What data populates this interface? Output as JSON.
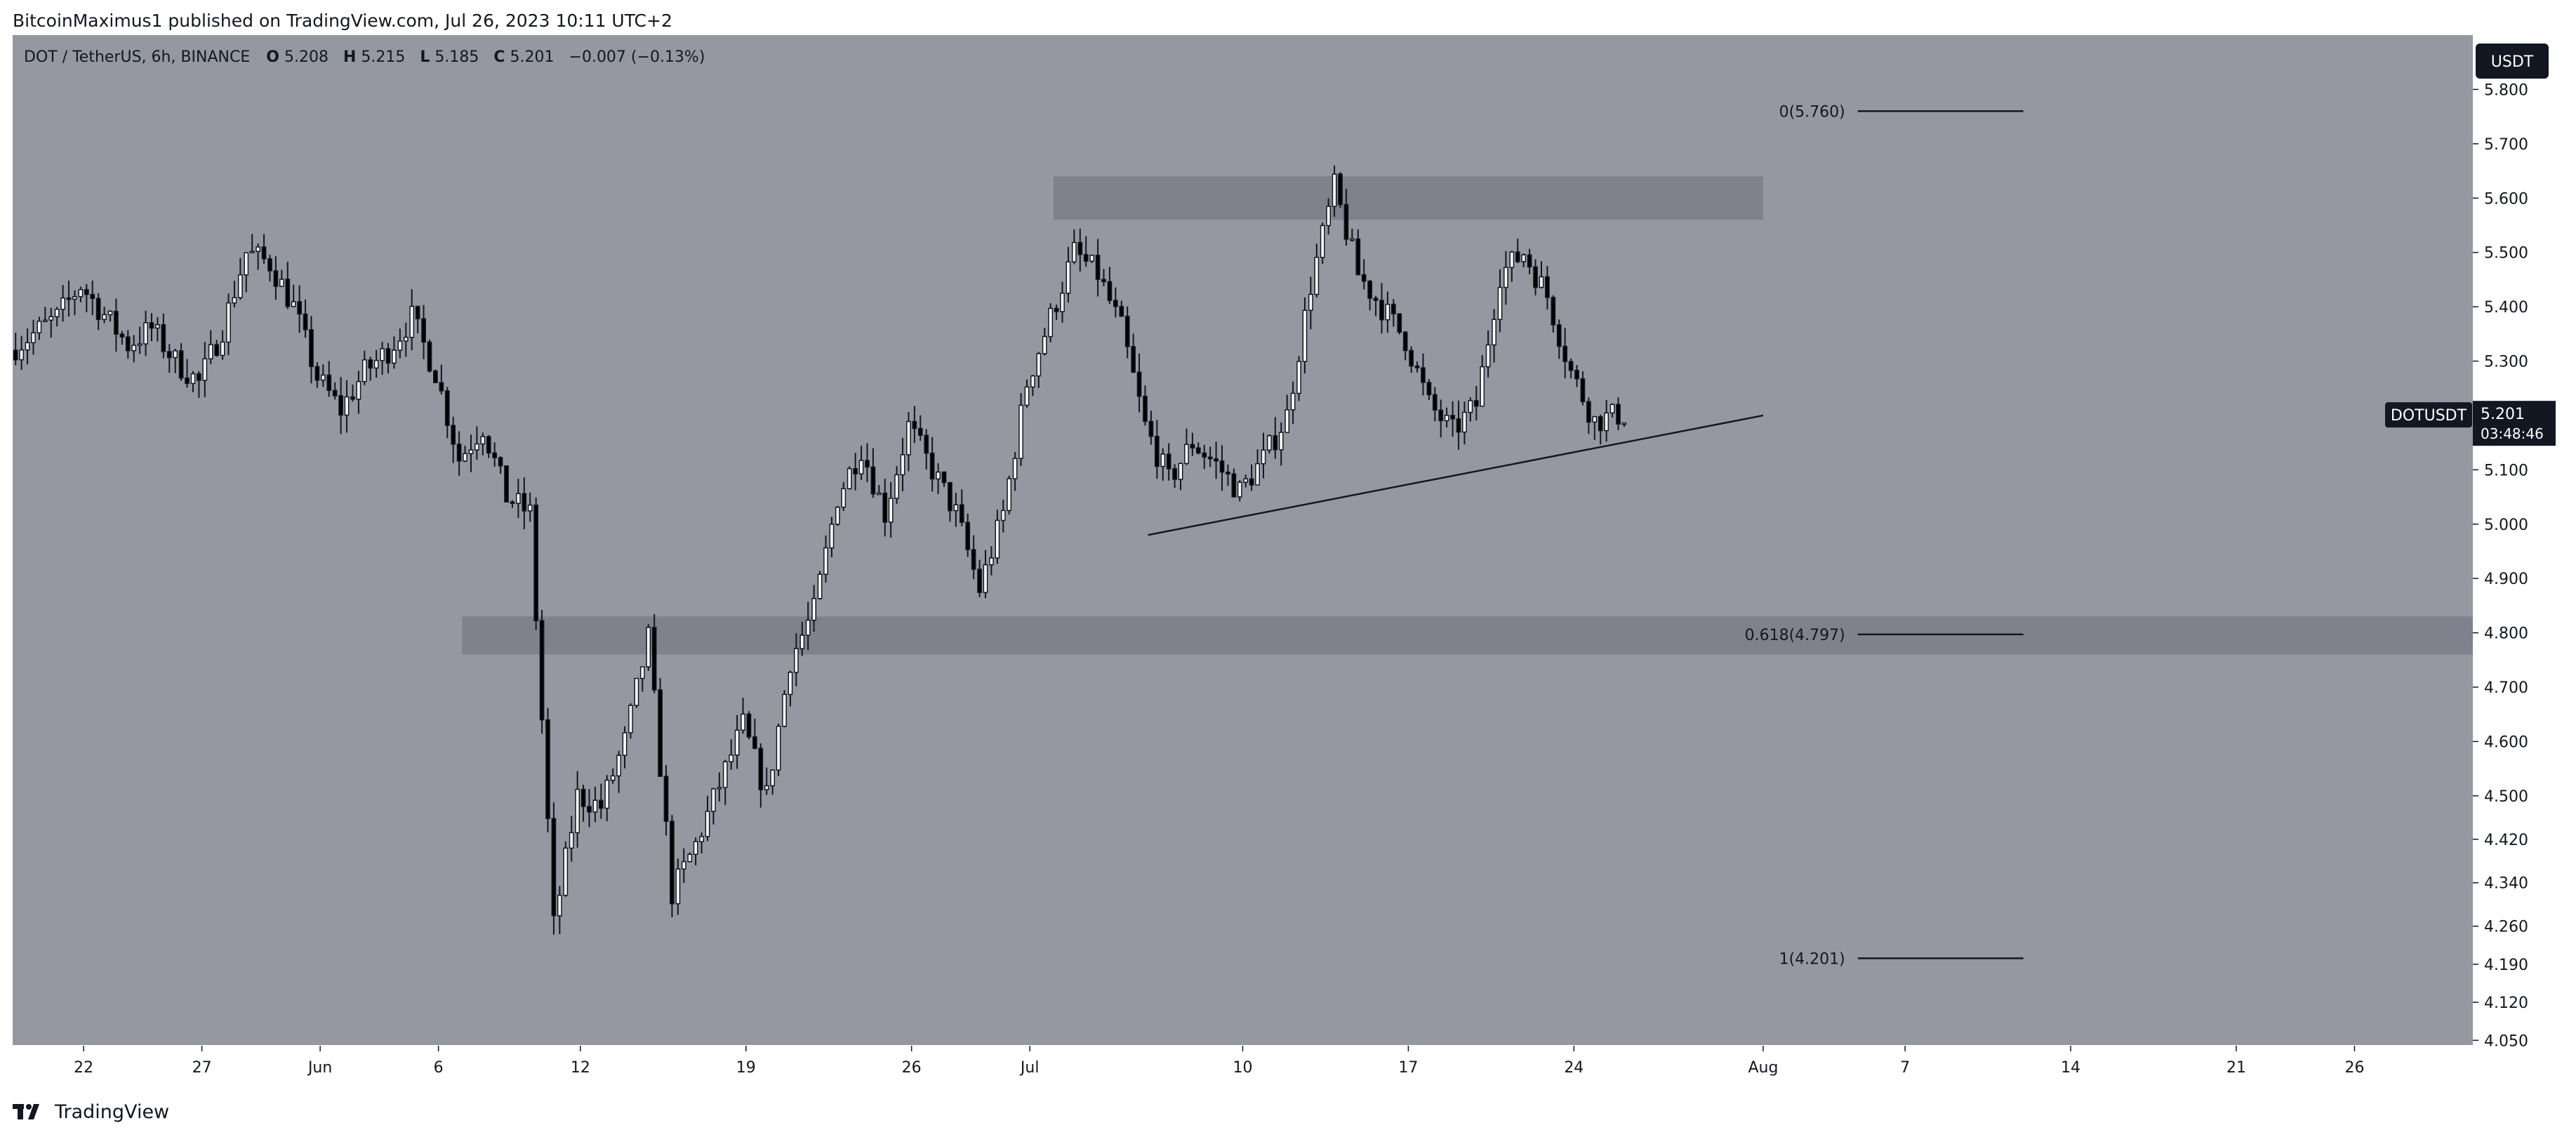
{
  "header": {
    "published_line": "BitcoinMaximus1 published on TradingView.com, Jul 26, 2023 10:11 UTC+2"
  },
  "footer": {
    "brand": "TradingView",
    "logo_icon": "tradingview-logo-icon"
  },
  "colors": {
    "plot_background": "#9598a1",
    "candle_up": "#ffffff",
    "candle_down": "#000000",
    "zone_fill": "#787b86",
    "axis_background": "#ffffff",
    "price_tag": "#131722"
  },
  "chart_data": {
    "type": "candlestick",
    "title": "DOT / TetherUS, 6h, BINANCE",
    "legend": {
      "symbol": "DOT / TetherUS, 6h, BINANCE",
      "open_label": "O",
      "open": "5.208",
      "high_label": "H",
      "high": "5.215",
      "low_label": "L",
      "low": "5.185",
      "close_label": "C",
      "close": "5.201",
      "change": "−0.007 (−0.13%)"
    },
    "currency_button": "USDT",
    "price_tag": {
      "symbol": "DOTUSDT",
      "price": "5.201",
      "countdown": "03:48:46"
    },
    "y_axis": {
      "ylim": [
        4.04,
        5.9
      ],
      "ticks": [
        "5.800",
        "5.700",
        "5.600",
        "5.500",
        "5.400",
        "5.300",
        "5.200",
        "5.100",
        "5.000",
        "4.900",
        "4.800",
        "4.700",
        "4.600",
        "4.500",
        "4.420",
        "4.340",
        "4.260",
        "4.190",
        "4.120",
        "4.050"
      ]
    },
    "x_axis": {
      "start_date": "2023-05-19",
      "end_date": "2023-08-31",
      "ticks": [
        {
          "label": "22",
          "date": "2023-05-22"
        },
        {
          "label": "27",
          "date": "2023-05-27"
        },
        {
          "label": "Jun",
          "date": "2023-06-01"
        },
        {
          "label": "6",
          "date": "2023-06-06"
        },
        {
          "label": "12",
          "date": "2023-06-12"
        },
        {
          "label": "19",
          "date": "2023-06-19"
        },
        {
          "label": "26",
          "date": "2023-06-26"
        },
        {
          "label": "Jul",
          "date": "2023-07-01"
        },
        {
          "label": "10",
          "date": "2023-07-10"
        },
        {
          "label": "17",
          "date": "2023-07-17"
        },
        {
          "label": "24",
          "date": "2023-07-24"
        },
        {
          "label": "Aug",
          "date": "2023-08-01"
        },
        {
          "label": "7",
          "date": "2023-08-07"
        },
        {
          "label": "14",
          "date": "2023-08-14"
        },
        {
          "label": "21",
          "date": "2023-08-21"
        },
        {
          "label": "26",
          "date": "2023-08-26"
        }
      ]
    },
    "price_path": [
      [
        "2023-05-19",
        5.32
      ],
      [
        "2023-05-21",
        5.38
      ],
      [
        "2023-05-22",
        5.44
      ],
      [
        "2023-05-24",
        5.33
      ],
      [
        "2023-05-25",
        5.36
      ],
      [
        "2023-05-26",
        5.3
      ],
      [
        "2023-05-27",
        5.26
      ],
      [
        "2023-05-28",
        5.36
      ],
      [
        "2023-05-29",
        5.5
      ],
      [
        "2023-05-30",
        5.48
      ],
      [
        "2023-05-31",
        5.4
      ],
      [
        "2023-06-01",
        5.27
      ],
      [
        "2023-06-02",
        5.21
      ],
      [
        "2023-06-03",
        5.28
      ],
      [
        "2023-06-04",
        5.32
      ],
      [
        "2023-06-05",
        5.38
      ],
      [
        "2023-06-06",
        5.28
      ],
      [
        "2023-06-07",
        5.12
      ],
      [
        "2023-06-08",
        5.18
      ],
      [
        "2023-06-09",
        5.05
      ],
      [
        "2023-06-10",
        5.02
      ],
      [
        "2023-06-11",
        4.26
      ],
      [
        "2023-06-12",
        4.5
      ],
      [
        "2023-06-13",
        4.48
      ],
      [
        "2023-06-14",
        4.6
      ],
      [
        "2023-06-15",
        4.79
      ],
      [
        "2023-06-16",
        4.32
      ],
      [
        "2023-06-17",
        4.41
      ],
      [
        "2023-06-18",
        4.52
      ],
      [
        "2023-06-19",
        4.63
      ],
      [
        "2023-06-20",
        4.5
      ],
      [
        "2023-06-21",
        4.75
      ],
      [
        "2023-06-22",
        4.84
      ],
      [
        "2023-06-23",
        5.05
      ],
      [
        "2023-06-24",
        5.14
      ],
      [
        "2023-06-25",
        5.02
      ],
      [
        "2023-06-26",
        5.18
      ],
      [
        "2023-06-27",
        5.1
      ],
      [
        "2023-06-28",
        5.02
      ],
      [
        "2023-06-29",
        4.88
      ],
      [
        "2023-06-30",
        5.02
      ],
      [
        "2023-07-01",
        5.26
      ],
      [
        "2023-07-02",
        5.38
      ],
      [
        "2023-07-03",
        5.5
      ],
      [
        "2023-07-04",
        5.46
      ],
      [
        "2023-07-05",
        5.36
      ],
      [
        "2023-07-06",
        5.18
      ],
      [
        "2023-07-07",
        5.08
      ],
      [
        "2023-07-08",
        5.15
      ],
      [
        "2023-07-09",
        5.11
      ],
      [
        "2023-07-10",
        5.06
      ],
      [
        "2023-07-11",
        5.12
      ],
      [
        "2023-07-12",
        5.2
      ],
      [
        "2023-07-13",
        5.44
      ],
      [
        "2023-07-14",
        5.62
      ],
      [
        "2023-07-15",
        5.46
      ],
      [
        "2023-07-16",
        5.4
      ],
      [
        "2023-07-17",
        5.34
      ],
      [
        "2023-07-18",
        5.22
      ],
      [
        "2023-07-19",
        5.17
      ],
      [
        "2023-07-20",
        5.22
      ],
      [
        "2023-07-21",
        5.46
      ],
      [
        "2023-07-22",
        5.5
      ],
      [
        "2023-07-23",
        5.42
      ],
      [
        "2023-07-24",
        5.28
      ],
      [
        "2023-07-25",
        5.19
      ],
      [
        "2023-07-26",
        5.201
      ]
    ],
    "zones": [
      {
        "name": "resistance-zone",
        "from": 5.56,
        "to": 5.64,
        "start": "2023-07-02",
        "end": "2023-08-01"
      },
      {
        "name": "support-zone",
        "from": 4.76,
        "to": 4.83,
        "start": "2023-06-07",
        "end": "2023-08-31"
      }
    ],
    "trendline": {
      "start": [
        "2023-07-06",
        4.98
      ],
      "end": [
        "2023-08-01",
        5.2
      ]
    },
    "fib_levels": [
      {
        "label": "0(5.760)",
        "value": 5.76
      },
      {
        "label": "0.618(4.797)",
        "value": 4.797
      },
      {
        "label": "1(4.201)",
        "value": 4.201
      }
    ],
    "fib_line": {
      "start": "2023-08-05",
      "end": "2023-08-12"
    }
  }
}
